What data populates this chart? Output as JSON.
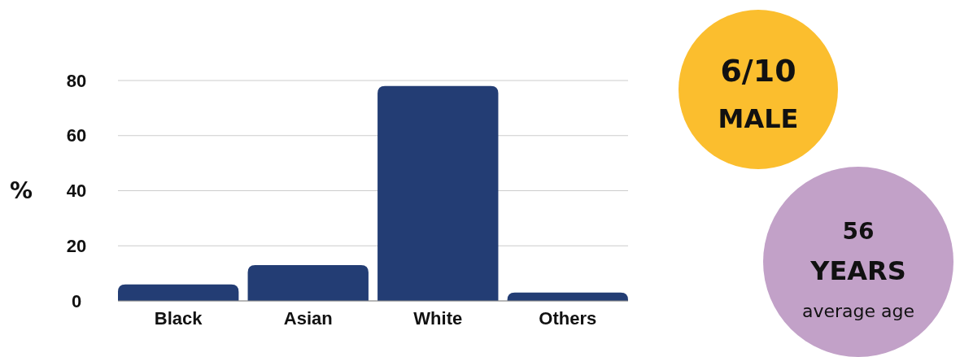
{
  "chart_data": {
    "type": "bar",
    "ylabel": "%",
    "categories": [
      "Black",
      "Asian",
      "White",
      "Others"
    ],
    "values": [
      6,
      13,
      78,
      3
    ],
    "color": "#233d74",
    "ylim": [
      0,
      80
    ],
    "yticks": [
      0,
      20,
      40,
      60,
      80
    ],
    "grid": "y",
    "annotations": [
      "6/10",
      "MALE",
      "56",
      "YEARS",
      "average age"
    ]
  }
}
